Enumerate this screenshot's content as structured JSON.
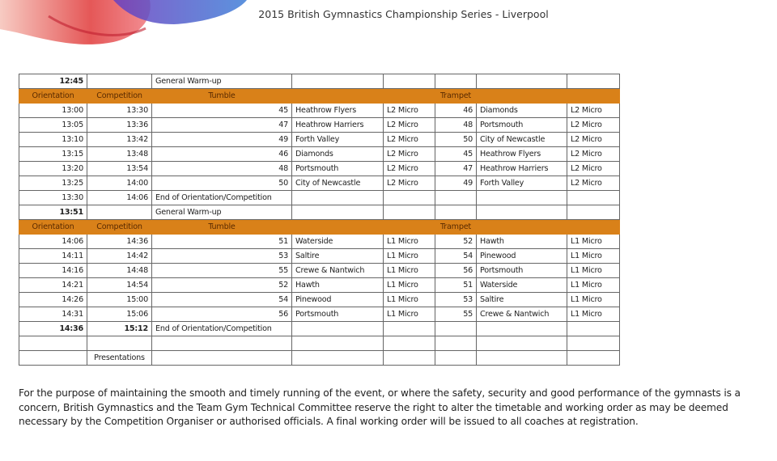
{
  "title": "2015 British Gymnastics Championship Series - Liverpool",
  "schedule": {
    "rows": [
      {
        "type": "info",
        "cells": [
          "12:45",
          "",
          "General Warm-up",
          "",
          "",
          "",
          "",
          ""
        ],
        "bold": [
          0
        ]
      },
      {
        "type": "header",
        "cells": [
          "Orientation",
          "Competition",
          "Tumble",
          "",
          "",
          "Trampet",
          "",
          ""
        ]
      },
      {
        "type": "data",
        "cells": [
          "13:00",
          "13:30",
          "45",
          "Heathrow Flyers",
          "L2 Micro",
          "46",
          "Diamonds",
          "L2 Micro"
        ]
      },
      {
        "type": "data",
        "cells": [
          "13:05",
          "13:36",
          "47",
          "Heathrow Harriers",
          "L2 Micro",
          "48",
          "Portsmouth",
          "L2 Micro"
        ]
      },
      {
        "type": "data",
        "cells": [
          "13:10",
          "13:42",
          "49",
          "Forth Valley",
          "L2 Micro",
          "50",
          "City of Newcastle",
          "L2 Micro"
        ]
      },
      {
        "type": "data",
        "cells": [
          "13:15",
          "13:48",
          "46",
          "Diamonds",
          "L2 Micro",
          "45",
          "Heathrow Flyers",
          "L2 Micro"
        ]
      },
      {
        "type": "data",
        "cells": [
          "13:20",
          "13:54",
          "48",
          "Portsmouth",
          "L2 Micro",
          "47",
          "Heathrow Harriers",
          "L2 Micro"
        ]
      },
      {
        "type": "data",
        "cells": [
          "13:25",
          "14:00",
          "50",
          "City of Newcastle",
          "L2 Micro",
          "49",
          "Forth Valley",
          "L2 Micro"
        ]
      },
      {
        "type": "info",
        "cells": [
          "13:30",
          "14:06",
          "End of Orientation/Competition",
          "",
          "",
          "",
          "",
          ""
        ],
        "bold": []
      },
      {
        "type": "info",
        "cells": [
          "13:51",
          "",
          "General Warm-up",
          "",
          "",
          "",
          "",
          ""
        ],
        "bold": [
          0
        ]
      },
      {
        "type": "header",
        "cells": [
          "Orientation",
          "Competition",
          "Tumble",
          "",
          "",
          "Trampet",
          "",
          ""
        ]
      },
      {
        "type": "data",
        "cells": [
          "14:06",
          "14:36",
          "51",
          "Waterside",
          "L1 Micro",
          "52",
          "Hawth",
          "L1 Micro"
        ]
      },
      {
        "type": "data",
        "cells": [
          "14:11",
          "14:42",
          "53",
          "Saltire",
          "L1 Micro",
          "54",
          "Pinewood",
          "L1 Micro"
        ]
      },
      {
        "type": "data",
        "cells": [
          "14:16",
          "14:48",
          "55",
          "Crewe & Nantwich",
          "L1 Micro",
          "56",
          "Portsmouth",
          "L1 Micro"
        ]
      },
      {
        "type": "data",
        "cells": [
          "14:21",
          "14:54",
          "52",
          "Hawth",
          "L1 Micro",
          "51",
          "Waterside",
          "L1 Micro"
        ]
      },
      {
        "type": "data",
        "cells": [
          "14:26",
          "15:00",
          "54",
          "Pinewood",
          "L1 Micro",
          "53",
          "Saltire",
          "L1 Micro"
        ]
      },
      {
        "type": "data",
        "cells": [
          "14:31",
          "15:06",
          "56",
          "Portsmouth",
          "L1 Micro",
          "55",
          "Crewe & Nantwich",
          "L1 Micro"
        ]
      },
      {
        "type": "info",
        "cells": [
          "14:36",
          "15:12",
          "End of Orientation/Competition",
          "",
          "",
          "",
          "",
          ""
        ],
        "bold": [
          0,
          1
        ]
      },
      {
        "type": "info",
        "cells": [
          "",
          "",
          "",
          "",
          "",
          "",
          "",
          ""
        ],
        "bold": []
      },
      {
        "type": "info",
        "cells": [
          "",
          "Presentations",
          "",
          "",
          "",
          "",
          "",
          ""
        ],
        "bold": []
      }
    ]
  },
  "note": "For the purpose of maintaining the smooth and timely running of the event, or where the safety, security and good performance of the gymnasts is a concern, British Gymnastics and the Team Gym Technical Committee reserve the right to alter the timetable and working order as may be deemed necessary by the Competition Organiser or authorised officials. A final working order will be issued to all coaches at registration."
}
